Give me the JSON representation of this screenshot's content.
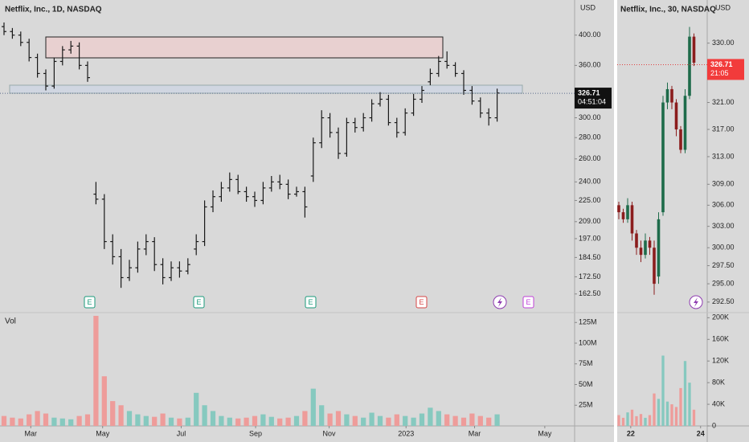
{
  "chart_data": [
    {
      "type": "ohlc",
      "title": "Netflix, Inc., 1D, NASDAQ",
      "currency": "USD",
      "log": true,
      "ylim": [
        154,
        452
      ],
      "yticks": [
        {
          "value": 400,
          "label": "400.00"
        },
        {
          "value": 360,
          "label": "360.00"
        },
        {
          "value": 300,
          "label": "300.00"
        },
        {
          "value": 280,
          "label": "280.00"
        },
        {
          "value": 260,
          "label": "260.00"
        },
        {
          "value": 240,
          "label": "240.00"
        },
        {
          "value": 225,
          "label": "225.00"
        },
        {
          "value": 209,
          "label": "209.00"
        },
        {
          "value": 197,
          "label": "197.00"
        },
        {
          "value": 184.5,
          "label": "184.50"
        },
        {
          "value": 172.5,
          "label": "172.50"
        },
        {
          "value": 162.5,
          "label": "162.50"
        }
      ],
      "xticks": [
        {
          "value": 3.2,
          "label": "Mar"
        },
        {
          "value": 11.8,
          "label": "May"
        },
        {
          "value": 21.2,
          "label": "Jul"
        },
        {
          "value": 30.1,
          "label": "Sep"
        },
        {
          "value": 38.9,
          "label": "Nov"
        },
        {
          "value": 48.1,
          "label": "2023"
        },
        {
          "value": 56.3,
          "label": "Mar"
        },
        {
          "value": 64.7,
          "label": "May"
        }
      ],
      "last_price": 326.71,
      "countdown": "04:51:04",
      "events": [
        "E",
        "E",
        "E",
        "E",
        "E"
      ],
      "color": "#1a1a1a",
      "open": [
        412,
        405,
        400,
        390,
        370,
        350,
        335,
        365,
        380,
        385,
        360,
        230,
        226,
        195,
        185,
        172,
        178,
        190,
        195,
        180,
        172,
        178,
        176,
        190,
        195,
        220,
        228,
        235,
        242,
        232,
        228,
        225,
        235,
        240,
        238,
        230,
        232,
        245,
        275,
        300,
        285,
        265,
        295,
        290,
        300,
        315,
        320,
        295,
        285,
        305,
        320,
        340,
        350,
        365,
        360,
        350,
        330,
        318,
        305,
        300
      ],
      "high": [
        418,
        410,
        405,
        395,
        375,
        355,
        370,
        385,
        392,
        390,
        365,
        240,
        230,
        200,
        190,
        183,
        195,
        200,
        198,
        184,
        182,
        182,
        184,
        200,
        225,
        233,
        240,
        248,
        246,
        236,
        232,
        240,
        245,
        246,
        242,
        236,
        236,
        280,
        308,
        305,
        290,
        300,
        300,
        305,
        320,
        328,
        325,
        300,
        310,
        326,
        335,
        356,
        372,
        378,
        364,
        354,
        335,
        322,
        310,
        332
      ],
      "low": [
        400,
        395,
        385,
        365,
        345,
        330,
        332,
        360,
        375,
        355,
        340,
        222,
        190,
        180,
        166,
        170,
        175,
        186,
        176,
        168,
        170,
        172,
        174,
        186,
        192,
        216,
        224,
        232,
        230,
        224,
        220,
        222,
        232,
        234,
        226,
        228,
        212,
        240,
        270,
        280,
        260,
        262,
        285,
        286,
        296,
        312,
        292,
        280,
        282,
        302,
        316,
        336,
        346,
        356,
        346,
        325,
        314,
        300,
        292,
        296
      ],
      "close": [
        405,
        400,
        390,
        370,
        350,
        335,
        365,
        380,
        385,
        360,
        345,
        226,
        195,
        185,
        172,
        178,
        190,
        195,
        180,
        172,
        178,
        176,
        180,
        195,
        220,
        228,
        235,
        242,
        232,
        228,
        225,
        235,
        240,
        238,
        230,
        232,
        220,
        275,
        300,
        285,
        265,
        295,
        290,
        300,
        315,
        320,
        295,
        285,
        305,
        320,
        330,
        350,
        365,
        360,
        350,
        330,
        318,
        305,
        300,
        327
      ]
    },
    {
      "type": "bar",
      "title": "Vol",
      "ylim": [
        0,
        134
      ],
      "up_color": "#86c9bf",
      "down_color": "#ee9c9a",
      "yticks": [
        {
          "value": 125,
          "label": "125M"
        },
        {
          "value": 100,
          "label": "100M"
        },
        {
          "value": 75,
          "label": "75M"
        },
        {
          "value": 50,
          "label": "50M"
        },
        {
          "value": 25,
          "label": "25M"
        }
      ],
      "values": [
        12,
        10,
        9,
        14,
        18,
        15,
        10,
        9,
        8,
        12,
        14,
        133,
        60,
        30,
        25,
        18,
        14,
        12,
        11,
        15,
        10,
        9,
        10,
        40,
        25,
        18,
        12,
        10,
        9,
        10,
        12,
        14,
        11,
        9,
        10,
        12,
        18,
        45,
        25,
        15,
        18,
        14,
        12,
        10,
        16,
        12,
        10,
        14,
        12,
        10,
        15,
        22,
        18,
        14,
        12,
        10,
        15,
        12,
        10,
        14
      ]
    },
    {
      "type": "candlestick",
      "title": "Netflix, Inc., 30, NASDAQ",
      "currency": "USD",
      "log": true,
      "ylim": [
        291.5,
        336.7
      ],
      "up_color": "#1e6b4a",
      "down_color": "#8b1d1d",
      "yticks": [
        {
          "value": 330,
          "label": "330.00"
        },
        {
          "value": 321,
          "label": "321.00"
        },
        {
          "value": 317,
          "label": "317.00"
        },
        {
          "value": 313,
          "label": "313.00"
        },
        {
          "value": 309,
          "label": "309.00"
        },
        {
          "value": 306,
          "label": "306.00"
        },
        {
          "value": 303,
          "label": "303.00"
        },
        {
          "value": 300,
          "label": "300.00"
        },
        {
          "value": 297.5,
          "label": "297.50"
        },
        {
          "value": 295,
          "label": "295.00"
        },
        {
          "value": 292.5,
          "label": "292.50"
        }
      ],
      "xticks": [
        {
          "value": 2.7,
          "label": "22"
        },
        {
          "value": 18.5,
          "label": "24"
        }
      ],
      "last_price": 326.71,
      "countdown": "21:05",
      "open": [
        306,
        305,
        304,
        306,
        302,
        300,
        299,
        301,
        300,
        296,
        305,
        321,
        323,
        321,
        317,
        314,
        322,
        331
      ],
      "high": [
        306.5,
        305.5,
        307,
        306.5,
        302.5,
        301,
        302,
        301.5,
        301,
        305,
        322,
        324,
        323.5,
        321.5,
        317.5,
        323,
        332.5,
        331.5
      ],
      "low": [
        304,
        303.5,
        303.5,
        301,
        299,
        298,
        298.5,
        299,
        293.5,
        295,
        304.5,
        320,
        320,
        316,
        313.5,
        313.5,
        321.5,
        326.5
      ],
      "close": [
        305,
        304,
        306,
        302,
        300,
        299,
        301,
        300,
        295,
        304,
        321,
        323,
        321,
        317,
        314,
        322,
        331,
        327
      ]
    },
    {
      "type": "bar",
      "ylim": [
        0,
        205
      ],
      "up_color": "#86c9bf",
      "down_color": "#ee9c9a",
      "yticks": [
        0,
        {
          "value": 40,
          "label": "40K"
        },
        {
          "value": 80,
          "label": "80K"
        },
        {
          "value": 120,
          "label": "120K"
        },
        {
          "value": 160,
          "label": "160K"
        },
        {
          "value": 200,
          "label": "200K"
        }
      ],
      "values": [
        20,
        15,
        25,
        30,
        18,
        22,
        15,
        20,
        60,
        50,
        130,
        45,
        40,
        35,
        70,
        120,
        80,
        30
      ]
    }
  ]
}
